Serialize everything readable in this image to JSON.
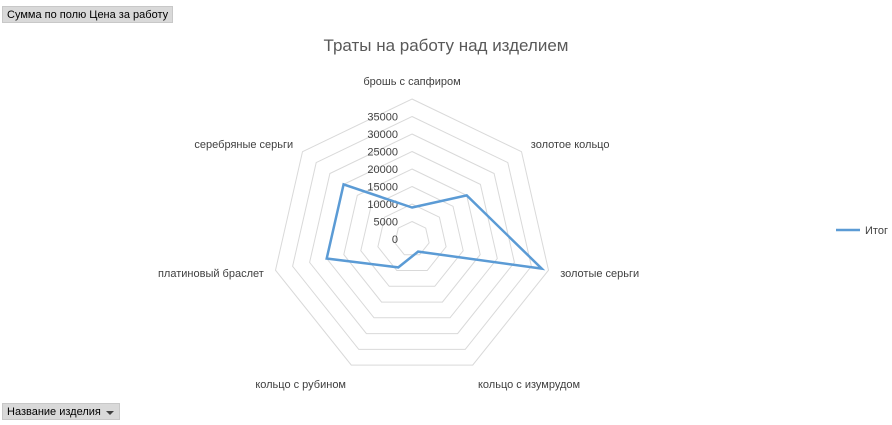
{
  "pivot": {
    "value_field_label": "Сумма по полю Цена за работу",
    "axis_field_label": "Название изделия"
  },
  "chart_data": {
    "type": "radar",
    "title": "Траты на работу над изделием",
    "categories": [
      "брошь с сапфиром",
      "золотое кольцо",
      "золотые серьги",
      "кольцо с изумрудом",
      "кольцо с рубином",
      "платиновый браслет",
      "серебряные серьги"
    ],
    "series": [
      {
        "name": "Итог",
        "values": [
          9000,
          20000,
          38000,
          4000,
          9000,
          25000,
          25000
        ],
        "color": "#5b9bd5"
      }
    ],
    "radial_ticks": [
      "0",
      "5000",
      "10000",
      "15000",
      "20000",
      "25000",
      "30000",
      "35000"
    ],
    "rlim": [
      0,
      40000
    ],
    "grid": true,
    "legend": "right"
  }
}
